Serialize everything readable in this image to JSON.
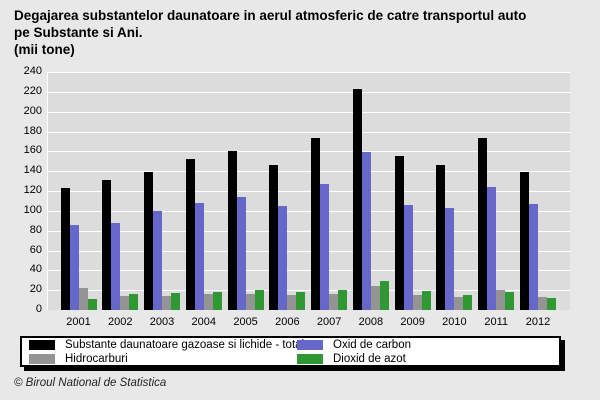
{
  "header": {
    "title_line1": "Degajarea substantelor daunatoare in aerul atmosferic de catre transportul auto",
    "title_line2": "pe Substante si Ani.",
    "unit": "(mii tone)"
  },
  "chart_data": {
    "type": "bar",
    "title": "Degajarea substantelor daunatoare in aerul atmosferic de catre transportul auto pe Substante si Ani.",
    "unit_label": "(mii tone)",
    "categories": [
      "2001",
      "2002",
      "2003",
      "2004",
      "2005",
      "2006",
      "2007",
      "2008",
      "2009",
      "2010",
      "2011",
      "2012"
    ],
    "series": [
      {
        "name": "Substante daunatoare gazoase si lichide - total",
        "color": "#000000",
        "values": [
          123,
          131,
          139,
          152,
          160,
          146,
          173,
          223,
          155,
          146,
          173,
          139
        ]
      },
      {
        "name": "Oxid de carbon",
        "color": "#6767ca",
        "values": [
          86,
          88,
          100,
          108,
          114,
          105,
          127,
          159,
          106,
          103,
          124,
          107
        ]
      },
      {
        "name": "Hidrocarburi",
        "color": "#949494",
        "values": [
          22,
          14,
          14,
          16,
          16,
          15,
          16,
          24,
          15,
          13,
          20,
          13
        ]
      },
      {
        "name": "Dioxid de azot",
        "color": "#2f9833",
        "values": [
          11,
          16,
          17,
          18,
          20,
          18,
          20,
          29,
          19,
          15,
          18,
          12
        ]
      }
    ],
    "xlabel": "",
    "ylabel": "",
    "ylim": [
      0,
      240
    ],
    "y_ticks": [
      0,
      20,
      40,
      60,
      80,
      100,
      120,
      140,
      160,
      180,
      200,
      220,
      240
    ],
    "grid": "horizontal",
    "legend_position": "bottom"
  },
  "colors": {
    "page_bg": "#e8e8e8",
    "plot_bg": "#dcdcdc",
    "gridline": "#ffffff",
    "legend_bg": "#ffffff",
    "legend_border": "#000000"
  },
  "footer": {
    "text": "© Biroul National de Statistica"
  }
}
